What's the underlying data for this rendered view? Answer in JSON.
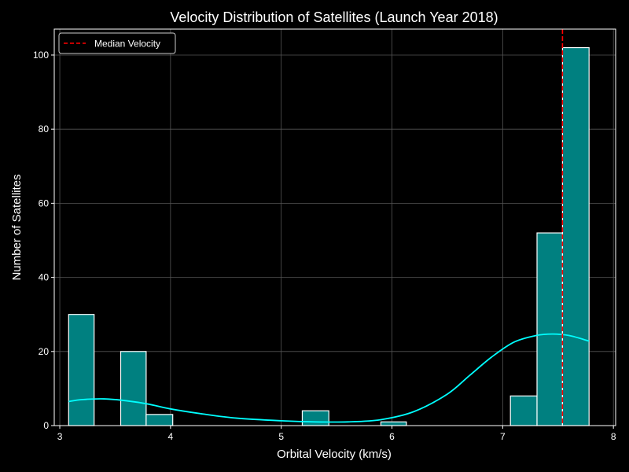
{
  "chart_data": {
    "type": "bar",
    "title": "Velocity Distribution of Satellites (Launch Year 2018)",
    "xlabel": "Orbital Velocity (km/s)",
    "ylabel": "Number of Satellites",
    "xlim": [
      2.95,
      8.02
    ],
    "ylim": [
      0,
      107
    ],
    "x_ticks": [
      3,
      4,
      5,
      6,
      7,
      8
    ],
    "y_ticks": [
      0,
      20,
      40,
      60,
      80,
      100
    ],
    "grid": true,
    "legend_position": "top-left",
    "colors": {
      "background": "#000000",
      "bar_fill": "#008080",
      "bar_edge": "#ffffff",
      "kde_line": "#00ffff",
      "median_line": "#ff0000",
      "grid": "#555555"
    },
    "bins": [
      {
        "x0": 3.08,
        "x1": 3.31,
        "count": 30
      },
      {
        "x0": 3.31,
        "x1": 3.55,
        "count": 0
      },
      {
        "x0": 3.55,
        "x1": 3.78,
        "count": 20
      },
      {
        "x0": 3.78,
        "x1": 4.02,
        "count": 3
      },
      {
        "x0": 4.02,
        "x1": 4.25,
        "count": 0
      },
      {
        "x0": 4.25,
        "x1": 4.49,
        "count": 0
      },
      {
        "x0": 4.49,
        "x1": 4.72,
        "count": 0
      },
      {
        "x0": 4.72,
        "x1": 4.96,
        "count": 0
      },
      {
        "x0": 4.96,
        "x1": 5.19,
        "count": 0
      },
      {
        "x0": 5.19,
        "x1": 5.43,
        "count": 4
      },
      {
        "x0": 5.43,
        "x1": 5.66,
        "count": 0
      },
      {
        "x0": 5.66,
        "x1": 5.9,
        "count": 0
      },
      {
        "x0": 5.9,
        "x1": 6.13,
        "count": 1
      },
      {
        "x0": 6.13,
        "x1": 6.37,
        "count": 0
      },
      {
        "x0": 6.37,
        "x1": 6.6,
        "count": 0
      },
      {
        "x0": 6.6,
        "x1": 6.84,
        "count": 0
      },
      {
        "x0": 6.84,
        "x1": 7.07,
        "count": 0
      },
      {
        "x0": 7.07,
        "x1": 7.31,
        "count": 8
      },
      {
        "x0": 7.31,
        "x1": 7.54,
        "count": 52
      },
      {
        "x0": 7.54,
        "x1": 7.78,
        "count": 102
      }
    ],
    "kde": {
      "x": [
        3.08,
        3.2,
        3.4,
        3.6,
        3.8,
        4.0,
        4.3,
        4.6,
        5.0,
        5.3,
        5.6,
        5.9,
        6.2,
        6.5,
        6.7,
        6.9,
        7.1,
        7.3,
        7.45,
        7.6,
        7.78
      ],
      "y": [
        6.5,
        7.0,
        7.2,
        6.7,
        5.8,
        4.5,
        3.1,
        2.0,
        1.3,
        1.0,
        1.0,
        1.6,
        3.8,
        8.5,
        13.5,
        18.5,
        22.5,
        24.3,
        24.7,
        24.3,
        22.8
      ]
    },
    "median": {
      "value": 7.54,
      "label": "Median Velocity"
    }
  }
}
